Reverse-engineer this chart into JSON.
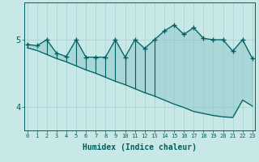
{
  "xlabel": "Humidex (Indice chaleur)",
  "background_color": "#c8e8e8",
  "grid_color": "#aad4d4",
  "line_color": "#006060",
  "fill_color": "#90c8c8",
  "yticks": [
    4,
    5
  ],
  "ylim": [
    3.65,
    5.55
  ],
  "xlim": [
    -0.3,
    23.3
  ],
  "upper_line": [
    4.93,
    4.91,
    5.0,
    4.8,
    4.75,
    5.0,
    4.74,
    4.74,
    4.74,
    5.0,
    4.74,
    5.0,
    4.87,
    5.0,
    5.13,
    5.22,
    5.08,
    5.18,
    5.02,
    5.0,
    5.0,
    4.83,
    5.0,
    4.72
  ],
  "lower_line": [
    4.88,
    4.84,
    4.78,
    4.72,
    4.67,
    4.61,
    4.55,
    4.5,
    4.44,
    4.38,
    4.33,
    4.27,
    4.21,
    4.16,
    4.1,
    4.04,
    3.99,
    3.93,
    3.9,
    3.87,
    3.85,
    3.84,
    4.1,
    4.01
  ],
  "spike_indices": [
    2,
    3,
    4,
    5,
    6,
    7,
    8,
    9,
    10,
    11,
    12,
    13
  ],
  "x_tick_labels": [
    "0",
    "1",
    "2",
    "3",
    "4",
    "5",
    "6",
    "7",
    "8",
    "9",
    "10",
    "11",
    "12",
    "13",
    "14",
    "15",
    "16",
    "17",
    "18",
    "19",
    "20",
    "21",
    "22",
    "23"
  ]
}
